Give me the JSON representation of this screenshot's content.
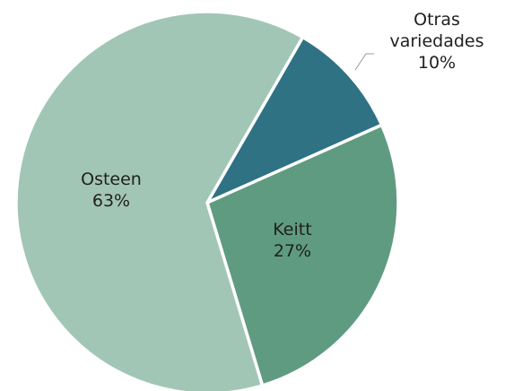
{
  "chart_data": {
    "type": "pie",
    "title": "",
    "slices": [
      {
        "label": "Otras variedades",
        "value": 10,
        "value_label": "10%",
        "color": "#2e7284"
      },
      {
        "label": "Keitt",
        "value": 27,
        "value_label": "27%",
        "color": "#5f9b80"
      },
      {
        "label": "Osteen",
        "value": 63,
        "value_label": "63%",
        "color": "#a2c6b6"
      }
    ],
    "start_angle_deg": 30,
    "direction": "clockwise",
    "slice_border_color": "#ffffff",
    "legend": "none"
  }
}
